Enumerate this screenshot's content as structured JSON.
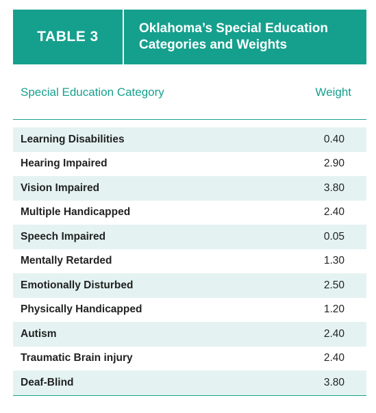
{
  "banner": {
    "label": "TABLE 3",
    "title_line1": "Oklahoma’s Special Education",
    "title_line2": "Categories and Weights"
  },
  "columns": {
    "category": "Special Education Category",
    "weight": "Weight"
  },
  "rows": [
    {
      "category": "Learning Disabilities",
      "weight": "0.40"
    },
    {
      "category": "Hearing Impaired",
      "weight": "2.90"
    },
    {
      "category": "Vision Impaired",
      "weight": "3.80"
    },
    {
      "category": "Multiple Handicapped",
      "weight": "2.40"
    },
    {
      "category": "Speech Impaired",
      "weight": "0.05"
    },
    {
      "category": "Mentally Retarded",
      "weight": "1.30"
    },
    {
      "category": "Emotionally Disturbed",
      "weight": "2.50"
    },
    {
      "category": "Physically Handicapped",
      "weight": "1.20"
    },
    {
      "category": "Autism",
      "weight": "2.40"
    },
    {
      "category": "Traumatic Brain injury",
      "weight": "2.40"
    },
    {
      "category": "Deaf-Blind",
      "weight": "3.80"
    }
  ],
  "colors": {
    "accent": "#15a08d",
    "stripe": "#e4f3f1"
  }
}
